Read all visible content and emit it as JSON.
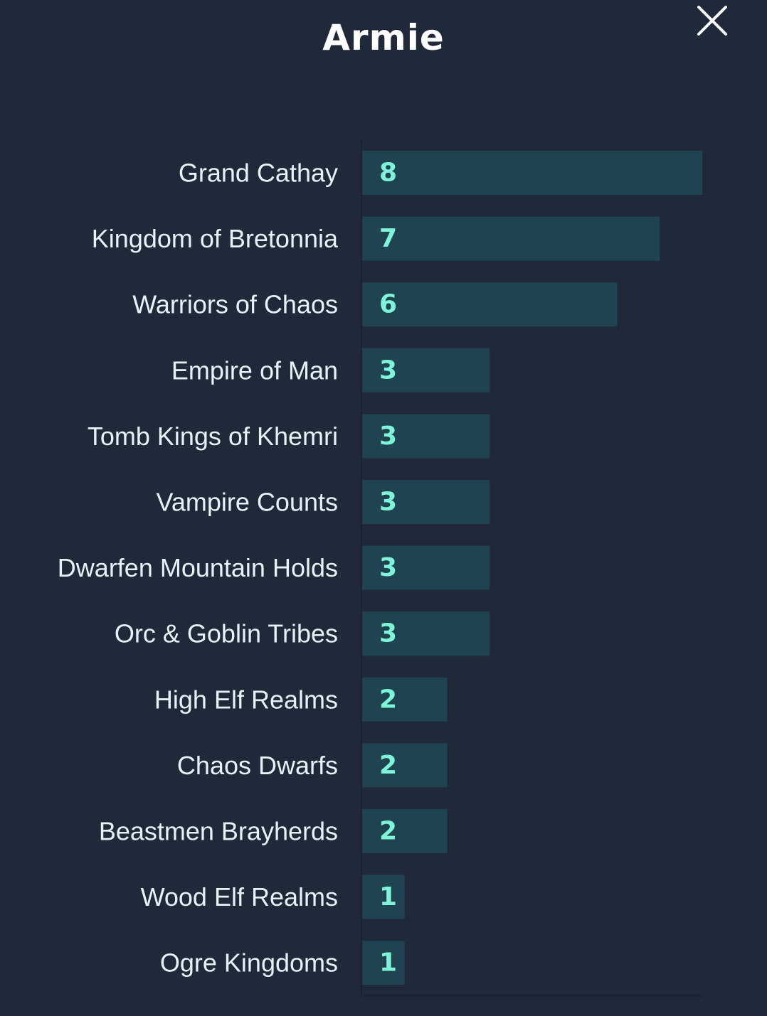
{
  "header": {
    "title": "Armie",
    "close_icon": "close-icon"
  },
  "colors": {
    "background": "#1f293a",
    "bar": "#1f4350",
    "value_text": "#7ef5d8",
    "category_text": "#e6f3f6",
    "axis": "#1a2231"
  },
  "chart_data": {
    "type": "bar",
    "orientation": "horizontal",
    "title": "Armie",
    "categories": [
      "Grand Cathay",
      "Kingdom of Bretonnia",
      "Warriors of Chaos",
      "Empire of Man",
      "Tomb Kings of Khemri",
      "Vampire Counts",
      "Dwarfen Mountain Holds",
      "Orc & Goblin Tribes",
      "High Elf Realms",
      "Chaos Dwarfs",
      "Beastmen Brayherds",
      "Wood Elf Realms",
      "Ogre Kingdoms"
    ],
    "values": [
      8,
      7,
      6,
      3,
      3,
      3,
      3,
      3,
      2,
      2,
      2,
      1,
      1
    ],
    "xlim": [
      0,
      8
    ],
    "grid": false,
    "legend": "none",
    "data_labels": "inside-start"
  }
}
